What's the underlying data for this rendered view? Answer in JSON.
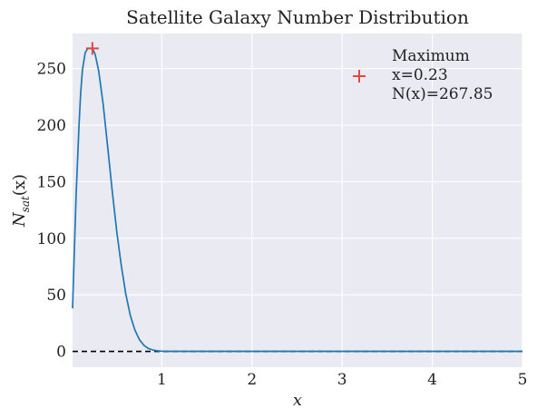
{
  "chart_data": {
    "type": "line",
    "title": "Satellite Galaxy Number Distribution",
    "xlabel_base": "x",
    "ylabel_base": "N",
    "ylabel_sub": "sat",
    "ylabel_arg": "(x)",
    "xlim": [
      0.01,
      5
    ],
    "ylim": [
      -14,
      281
    ],
    "xticks": [
      1,
      2,
      3,
      4,
      5
    ],
    "yticks": [
      0,
      50,
      100,
      150,
      200,
      250
    ],
    "grid": true,
    "legend_position": "top-right",
    "series": [
      {
        "name": "",
        "color": "#1f77b4",
        "x": [
          0.01,
          0.03,
          0.05,
          0.08,
          0.1,
          0.12,
          0.15,
          0.18,
          0.2,
          0.23,
          0.26,
          0.3,
          0.35,
          0.4,
          0.45,
          0.5,
          0.55,
          0.6,
          0.65,
          0.7,
          0.75,
          0.8,
          0.85,
          0.9,
          0.95,
          1.0,
          1.1,
          1.2,
          1.5,
          2.0,
          3.0,
          4.0,
          5.0
        ],
        "y": [
          38,
          90,
          140,
          198,
          228,
          249,
          264,
          268,
          268,
          267.85,
          263,
          248,
          218,
          180,
          142,
          106,
          76,
          51,
          32,
          19,
          10.5,
          5.5,
          2.6,
          1.2,
          0.5,
          0.2,
          0.05,
          0.02,
          0,
          0,
          0,
          0,
          0
        ]
      }
    ],
    "reference_line": {
      "y": 0,
      "color": "#000000",
      "style": "dashed"
    },
    "maximum_marker": {
      "x": 0.23,
      "y": 267.85,
      "color": "#e8453c"
    },
    "legend": {
      "marker_color": "#e8453c",
      "lines": [
        "Maximum",
        "x=0.23",
        "N(x)=267.85"
      ]
    }
  }
}
